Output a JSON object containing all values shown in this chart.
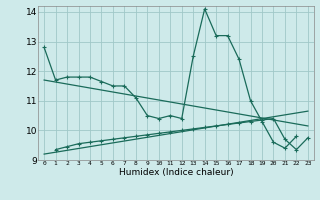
{
  "xlabel": "Humidex (Indice chaleur)",
  "background_color": "#ceeaea",
  "grid_color": "#a0c8c8",
  "line_color": "#1a6b5a",
  "xlim": [
    -0.5,
    23.5
  ],
  "ylim": [
    9,
    14.2
  ],
  "x_ticks": [
    0,
    1,
    2,
    3,
    4,
    5,
    6,
    7,
    8,
    9,
    10,
    11,
    12,
    13,
    14,
    15,
    16,
    17,
    18,
    19,
    20,
    21,
    22,
    23
  ],
  "y_ticks": [
    9,
    10,
    11,
    12,
    13,
    14
  ],
  "series1_x": [
    0,
    1,
    2,
    3,
    4,
    5,
    6,
    7,
    8,
    9,
    10,
    11,
    12,
    13,
    14,
    15,
    16,
    17,
    18,
    19,
    20,
    21,
    22
  ],
  "series1_y": [
    12.8,
    11.7,
    11.8,
    11.8,
    11.8,
    11.65,
    11.5,
    11.5,
    11.1,
    10.5,
    10.4,
    10.5,
    10.4,
    12.5,
    14.1,
    13.2,
    13.2,
    12.4,
    11.0,
    10.3,
    9.6,
    9.4,
    9.8
  ],
  "series2_x": [
    1,
    2,
    3,
    4,
    5,
    6,
    7,
    8,
    9,
    10,
    11,
    12,
    13,
    14,
    15,
    16,
    17,
    18,
    19,
    20,
    21,
    22,
    23
  ],
  "series2_y": [
    9.35,
    9.45,
    9.55,
    9.6,
    9.65,
    9.7,
    9.75,
    9.8,
    9.85,
    9.9,
    9.95,
    10.0,
    10.05,
    10.1,
    10.15,
    10.2,
    10.25,
    10.3,
    10.35,
    10.4,
    9.7,
    9.35,
    9.75
  ],
  "trend1_x": [
    0,
    23
  ],
  "trend1_y": [
    11.7,
    10.15
  ],
  "trend2_x": [
    0,
    23
  ],
  "trend2_y": [
    9.2,
    10.65
  ]
}
